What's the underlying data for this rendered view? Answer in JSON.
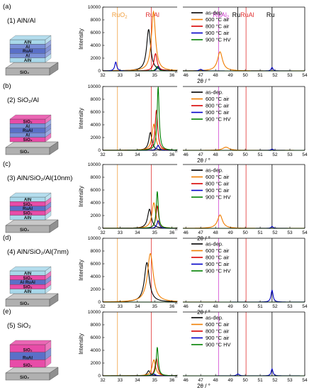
{
  "x_axis_label": "2θ / °",
  "y_axis_label": "Intensity",
  "break_marker": "//",
  "series_colors": {
    "as-dep.": "#000000",
    "600 °C air": "#f07d00",
    "800 °C air": "#d90000",
    "900 °C air": "#0000c8",
    "900 °C HV": "#008000"
  },
  "legend_labels": [
    "as-dep.",
    "600 °C air",
    "800 °C air",
    "900 °C air",
    "900 °C HV"
  ],
  "reference_lines": [
    {
      "label": "RuO",
      "sub": "2",
      "x": 32.85,
      "color": "#f0a040",
      "panel": 0
    },
    {
      "label": "RuAl",
      "sub": "",
      "x": 34.8,
      "color": "#e03030",
      "panel": 0
    },
    {
      "label": "RuAl",
      "sub": "2",
      "x": 48.2,
      "color": "#d040d0",
      "panel": 0
    },
    {
      "label": "Ru",
      "sub": "",
      "x": 49.5,
      "color": "#000000",
      "panel": 0
    },
    {
      "label": "RuAl",
      "sub": "",
      "x": 50.05,
      "color": "#e03030",
      "panel": 0
    },
    {
      "label": "Ru",
      "sub": "",
      "x": 51.8,
      "color": "#000000",
      "panel": 0
    }
  ],
  "panels": [
    {
      "letter": "(a)",
      "title": "(1) AlN/Al",
      "layers": [
        {
          "text": "AlN",
          "color": "#a8d8ea"
        },
        {
          "text": "Al",
          "color": "#7a90d8"
        },
        {
          "text": "RuAl",
          "color": "#5a70c8"
        },
        {
          "text": "Al",
          "color": "#7a90d8"
        },
        {
          "text": "AlN",
          "color": "#a8d8ea"
        }
      ]
    },
    {
      "letter": "(b)",
      "title": "(2) SiO₂/Al",
      "layers": [
        {
          "text": "SiO₂",
          "color": "#e84ca8"
        },
        {
          "text": "Al",
          "color": "#7a90d8"
        },
        {
          "text": "RuAl",
          "color": "#5a70c8"
        },
        {
          "text": "Al",
          "color": "#7a90d8"
        },
        {
          "text": "SiO₂",
          "color": "#e84ca8"
        }
      ]
    },
    {
      "letter": "(c)",
      "title": "(3) AlN/SiO₂/Al(10nm)",
      "layers": [
        {
          "text": "AlN",
          "color": "#a8d8ea"
        },
        {
          "text": "SiO₂",
          "color": "#e84ca8"
        },
        {
          "text": "RuAl",
          "color": "#5a70c8"
        },
        {
          "text": "SiO₂",
          "color": "#e84ca8"
        },
        {
          "text": "AlN",
          "color": "#a8d8ea"
        }
      ]
    },
    {
      "letter": "(d)",
      "title": "(4) AlN/SiO₂/Al(7nm)",
      "layers": [
        {
          "text": "AlN",
          "color": "#a8d8ea"
        },
        {
          "text": "SiO₂",
          "color": "#e84ca8"
        },
        {
          "text": "Al RuAl",
          "color": "#5a70c8"
        },
        {
          "text": "SiO₂",
          "color": "#e84ca8"
        },
        {
          "text": "AlN",
          "color": "#a8d8ea"
        }
      ]
    },
    {
      "letter": "(e)",
      "title": "(5) SiO₂",
      "layers": [
        {
          "text": "SiO₂",
          "color": "#e84ca8"
        },
        {
          "text": "RuAl",
          "color": "#5a70c8"
        },
        {
          "text": "SiO₂",
          "color": "#e84ca8"
        }
      ]
    }
  ],
  "substrate_label": "SiO₂",
  "chart_data": [
    {
      "type": "line",
      "panel": "(a)",
      "ylim": [
        0,
        10000
      ],
      "yticks": [
        0,
        2000,
        4000,
        6000,
        8000,
        10000
      ],
      "xticks": [
        32,
        33,
        34,
        35,
        36,
        46,
        47,
        48,
        49,
        50,
        51,
        52,
        53,
        54
      ],
      "xlim_left": [
        32,
        36.3
      ],
      "xlim_right": [
        45.8,
        54
      ],
      "series": [
        {
          "name": "as-dep.",
          "peaks": [
            [
              34.65,
              6500,
              0.14
            ]
          ]
        },
        {
          "name": "600 °C air",
          "peaks": [
            [
              34.93,
              9300,
              0.14
            ],
            [
              48.3,
              3000,
              0.2
            ]
          ]
        },
        {
          "name": "800 °C air",
          "peaks": [
            [
              35.05,
              2700,
              0.11
            ]
          ]
        },
        {
          "name": "900 °C air",
          "peaks": [
            [
              32.75,
              1400,
              0.07
            ],
            [
              35.2,
              700,
              0.08
            ],
            [
              47.0,
              250,
              0.12
            ],
            [
              51.8,
              550,
              0.07
            ]
          ]
        },
        {
          "name": "900 °C HV",
          "peaks": [
            [
              35.15,
              700,
              0.08
            ]
          ]
        }
      ]
    },
    {
      "type": "line",
      "panel": "(b)",
      "ylim": [
        0,
        10000
      ],
      "yticks": [
        0,
        2000,
        4000,
        6000,
        8000,
        10000
      ],
      "xticks": [
        32,
        33,
        34,
        35,
        36,
        46,
        47,
        48,
        49,
        50,
        51,
        52,
        53,
        54
      ],
      "series": [
        {
          "name": "as-dep.",
          "peaks": [
            [
              34.75,
              2800,
              0.11
            ]
          ]
        },
        {
          "name": "600 °C air",
          "peaks": [
            [
              34.95,
              4100,
              0.12
            ],
            [
              48.7,
              500,
              0.25
            ]
          ]
        },
        {
          "name": "800 °C air",
          "peaks": [
            [
              35.1,
              6300,
              0.09
            ]
          ]
        },
        {
          "name": "900 °C air",
          "peaks": [
            [
              35.2,
              800,
              0.08
            ],
            [
              51.8,
              200,
              0.08
            ]
          ]
        },
        {
          "name": "900 °C HV",
          "peaks": [
            [
              35.2,
              10000,
              0.07
            ]
          ]
        }
      ]
    },
    {
      "type": "line",
      "panel": "(c)",
      "ylim": [
        0,
        10000
      ],
      "yticks": [
        0,
        2000,
        4000,
        6000,
        8000,
        10000
      ],
      "xticks": [
        32,
        33,
        34,
        35,
        36,
        46,
        47,
        48,
        49,
        50,
        51,
        52,
        53,
        54
      ],
      "series": [
        {
          "name": "as-dep.",
          "peaks": [
            [
              34.7,
              3000,
              0.13
            ]
          ]
        },
        {
          "name": "600 °C air",
          "peaks": [
            [
              34.95,
              4000,
              0.13
            ],
            [
              48.3,
              2100,
              0.2
            ]
          ]
        },
        {
          "name": "800 °C air",
          "peaks": [
            [
              35.15,
              3500,
              0.09
            ]
          ]
        },
        {
          "name": "900 °C air",
          "peaks": [
            [
              35.2,
              1200,
              0.08
            ],
            [
              51.8,
              300,
              0.08
            ]
          ]
        },
        {
          "name": "900 °C HV",
          "peaks": [
            [
              35.15,
              5800,
              0.07
            ]
          ]
        }
      ]
    },
    {
      "type": "line",
      "panel": "(d)",
      "ylim": [
        0,
        10000
      ],
      "yticks": [
        0,
        2000,
        4000,
        6000,
        8000,
        10000
      ],
      "xticks": [
        32,
        33,
        34,
        35,
        36,
        46,
        47,
        48,
        49,
        50,
        51,
        52,
        53,
        54
      ],
      "series": [
        {
          "name": "as-dep.",
          "peaks": [
            [
              34.55,
              6200,
              0.17
            ]
          ]
        },
        {
          "name": "600 °C air",
          "peaks": [
            [
              34.75,
              7600,
              0.2
            ]
          ]
        },
        {
          "name": "800 °C air",
          "peaks": []
        },
        {
          "name": "900 °C air",
          "peaks": [
            [
              51.8,
              1900,
              0.08
            ]
          ]
        },
        {
          "name": "900 °C HV",
          "peaks": []
        }
      ]
    },
    {
      "type": "line",
      "panel": "(e)",
      "ylim": [
        0,
        10000
      ],
      "yticks": [
        0,
        2000,
        4000,
        6000,
        8000,
        10000
      ],
      "xticks": [
        32,
        33,
        34,
        35,
        36,
        46,
        47,
        48,
        49,
        50,
        51,
        52,
        53,
        54
      ],
      "series": [
        {
          "name": "as-dep.",
          "peaks": [
            [
              34.65,
              800,
              0.1
            ]
          ]
        },
        {
          "name": "600 °C air",
          "peaks": [
            [
              34.95,
              2500,
              0.12
            ]
          ]
        },
        {
          "name": "800 °C air",
          "peaks": [
            [
              35.1,
              2700,
              0.09
            ]
          ]
        },
        {
          "name": "900 °C air",
          "peaks": [
            [
              34.95,
              300,
              0.1
            ],
            [
              49.5,
              300,
              0.1
            ],
            [
              51.8,
              1100,
              0.07
            ]
          ]
        },
        {
          "name": "900 °C HV",
          "peaks": [
            [
              35.15,
              4500,
              0.07
            ]
          ]
        }
      ]
    }
  ]
}
